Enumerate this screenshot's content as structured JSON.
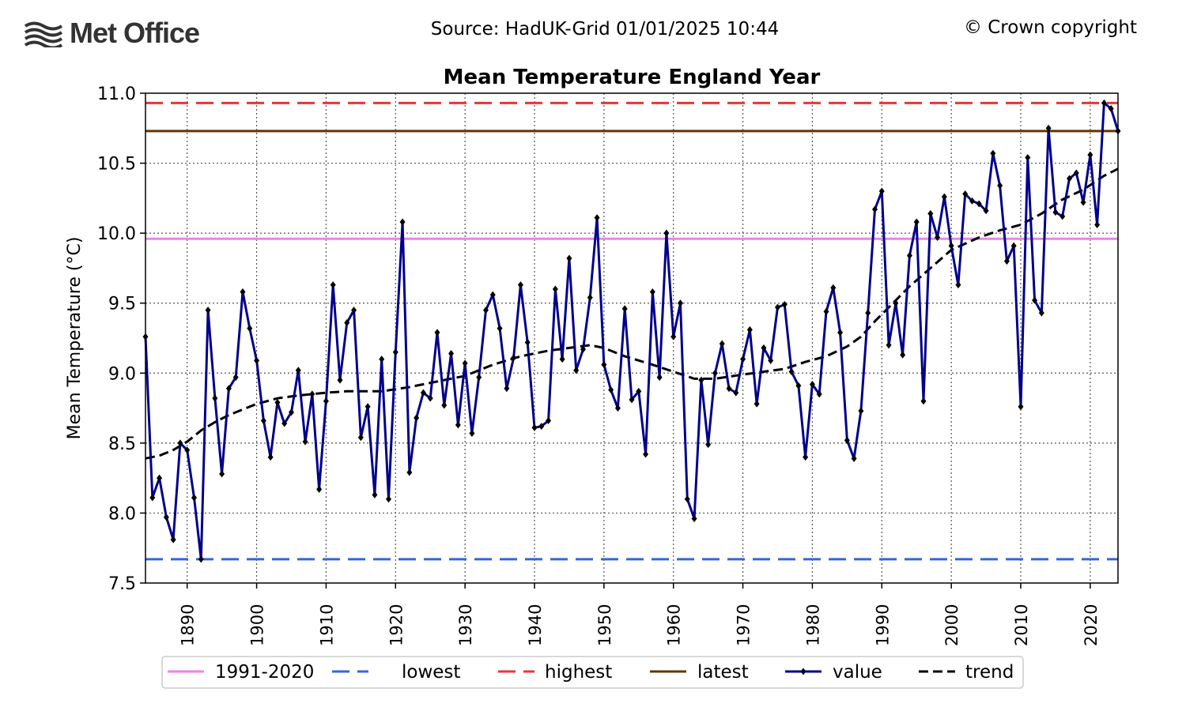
{
  "header": {
    "logo_text": "Met Office",
    "source": "Source: HadUK-Grid 01/01/2025 10:44",
    "copyright": "© Crown copyright"
  },
  "colors": {
    "value": "#00008b",
    "trend": "#000000",
    "average": "#ee82ee",
    "lowest": "#3366dd",
    "highest": "#ee3333",
    "latest": "#663300"
  },
  "chart_data": {
    "type": "line",
    "title": "Mean Temperature England Year",
    "ylabel": "Mean Temperature (°C)",
    "xlabel": "",
    "xlim": [
      1884,
      2024
    ],
    "ylim": [
      7.5,
      11.0
    ],
    "xticks": [
      "1890",
      "1900",
      "1910",
      "1920",
      "1930",
      "1940",
      "1950",
      "1960",
      "1970",
      "1980",
      "1990",
      "2000",
      "2010",
      "2020"
    ],
    "yticks": [
      "7.5",
      "8.0",
      "8.5",
      "9.0",
      "9.5",
      "10.0",
      "10.5",
      "11.0"
    ],
    "grid": true,
    "legend_position": "bottom",
    "legend": [
      "1991-2020",
      "lowest",
      "highest",
      "latest",
      "value",
      "trend"
    ],
    "reference_lines": {
      "average_1991_2020": 9.96,
      "lowest": 7.67,
      "highest": 10.93,
      "latest": 10.73
    },
    "series": [
      {
        "name": "value",
        "x_start": 1884,
        "values": [
          9.26,
          8.11,
          8.25,
          7.97,
          7.81,
          8.5,
          8.45,
          8.11,
          7.67,
          9.45,
          8.82,
          8.28,
          8.89,
          8.97,
          9.58,
          9.32,
          9.09,
          8.66,
          8.4,
          8.79,
          8.64,
          8.72,
          9.02,
          8.51,
          8.85,
          8.17,
          8.8,
          9.63,
          8.95,
          9.36,
          9.45,
          8.54,
          8.76,
          8.13,
          9.1,
          8.1,
          9.15,
          10.08,
          8.29,
          8.68,
          8.86,
          8.82,
          9.29,
          8.77,
          9.14,
          8.63,
          9.07,
          8.57,
          8.97,
          9.45,
          9.56,
          9.32,
          8.89,
          9.11,
          9.63,
          9.22,
          8.61,
          8.62,
          8.66,
          9.6,
          9.1,
          9.82,
          9.02,
          9.17,
          9.54,
          10.11,
          9.06,
          8.88,
          8.75,
          9.46,
          8.81,
          8.87,
          8.42,
          9.58,
          8.97,
          10.0,
          9.26,
          9.5,
          8.1,
          7.96,
          8.95,
          8.49,
          9.0,
          9.21,
          8.89,
          8.86,
          9.1,
          9.31,
          8.78,
          9.18,
          9.09,
          9.47,
          9.49,
          9.01,
          8.91,
          8.4,
          8.92,
          8.85,
          9.44,
          9.61,
          9.29,
          8.52,
          8.39,
          8.73,
          9.43,
          10.17,
          10.3,
          9.2,
          9.5,
          9.13,
          9.84,
          10.08,
          8.8,
          10.14,
          9.97,
          10.26,
          9.91,
          9.63,
          10.28,
          10.23,
          10.21,
          10.16,
          10.57,
          10.34,
          9.8,
          9.91,
          8.76,
          10.54,
          9.52,
          9.43,
          10.75,
          10.15,
          10.12,
          10.39,
          10.43,
          10.22,
          10.56,
          10.06,
          10.93,
          10.89,
          10.73
        ]
      },
      {
        "name": "trend",
        "points": [
          [
            1884,
            8.39
          ],
          [
            1886,
            8.41
          ],
          [
            1888,
            8.45
          ],
          [
            1890,
            8.51
          ],
          [
            1892,
            8.59
          ],
          [
            1894,
            8.65
          ],
          [
            1896,
            8.7
          ],
          [
            1898,
            8.74
          ],
          [
            1900,
            8.78
          ],
          [
            1903,
            8.82
          ],
          [
            1906,
            8.84
          ],
          [
            1910,
            8.86
          ],
          [
            1913,
            8.87
          ],
          [
            1918,
            8.87
          ],
          [
            1922,
            8.9
          ],
          [
            1926,
            8.94
          ],
          [
            1930,
            8.98
          ],
          [
            1934,
            9.06
          ],
          [
            1938,
            9.12
          ],
          [
            1942,
            9.16
          ],
          [
            1945,
            9.18
          ],
          [
            1948,
            9.2
          ],
          [
            1950,
            9.18
          ],
          [
            1953,
            9.12
          ],
          [
            1957,
            9.06
          ],
          [
            1960,
            9.01
          ],
          [
            1963,
            8.96
          ],
          [
            1966,
            8.96
          ],
          [
            1970,
            8.99
          ],
          [
            1973,
            9.01
          ],
          [
            1976,
            9.03
          ],
          [
            1979,
            9.08
          ],
          [
            1982,
            9.12
          ],
          [
            1985,
            9.19
          ],
          [
            1987,
            9.26
          ],
          [
            1989,
            9.37
          ],
          [
            1991,
            9.47
          ],
          [
            1994,
            9.62
          ],
          [
            1997,
            9.75
          ],
          [
            2000,
            9.88
          ],
          [
            2004,
            9.97
          ],
          [
            2007,
            10.02
          ],
          [
            2010,
            10.06
          ],
          [
            2013,
            10.14
          ],
          [
            2016,
            10.24
          ],
          [
            2019,
            10.31
          ],
          [
            2022,
            10.41
          ],
          [
            2024,
            10.46
          ]
        ]
      }
    ]
  }
}
